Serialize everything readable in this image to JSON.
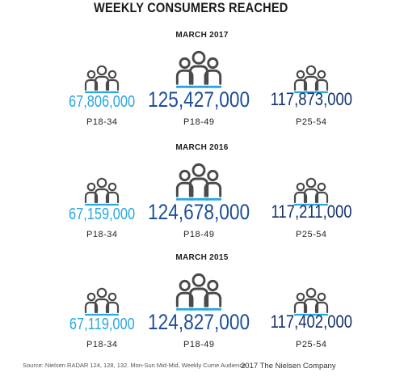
{
  "title": "WEEKLY CONSUMERS REACHED",
  "chart_data": {
    "type": "table",
    "title": "WEEKLY CONSUMERS REACHED",
    "columns": [
      "P18-34",
      "P18-49",
      "P25-54"
    ],
    "rows": [
      {
        "year": "MARCH 2017",
        "values": [
          67806000,
          125427000,
          117873000
        ],
        "labels": [
          "67,806,000",
          "125,427,000",
          "117,873,000"
        ]
      },
      {
        "year": "MARCH 2016",
        "values": [
          67159000,
          124678000,
          117211000
        ],
        "labels": [
          "67,159,000",
          "124,678,000",
          "117,211,000"
        ]
      },
      {
        "year": "MARCH 2015",
        "values": [
          67119000,
          124827000,
          117402000
        ],
        "labels": [
          "67,119,000",
          "124,827,000",
          "117,402,000"
        ]
      }
    ]
  },
  "demos": [
    "P18-34",
    "P18-49",
    "P25-54"
  ],
  "footer": {
    "source": "Source: Nielsen RADAR 124, 128, 132. Mon-Sun Mid-Mid, Weekly Cume Audience",
    "copyright": "2017 The Nielsen Company"
  },
  "colors": {
    "col1": "#2aa7df",
    "col2": "#1e4f99",
    "col3": "#16326e",
    "icon_dark": "#4a4a4a",
    "icon_light": "#2aa7df"
  },
  "icons": [
    "people-group-icon"
  ]
}
